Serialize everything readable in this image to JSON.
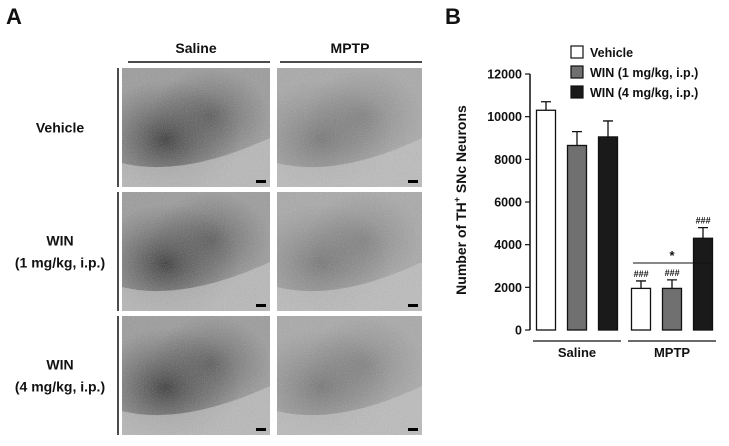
{
  "panel_a": {
    "label": "A",
    "columns": [
      "Saline",
      "MPTP"
    ],
    "rows": [
      [
        "Vehicle"
      ],
      [
        "WIN",
        "(1 mg/kg, i.p.)"
      ],
      [
        "WIN",
        "(4 mg/kg, i.p.)"
      ]
    ]
  },
  "chart_data": {
    "type": "bar",
    "panel_label": "B",
    "ylabel": [
      "Number of TH",
      "+",
      " SNc Neurons"
    ],
    "categories": [
      "Saline",
      "MPTP"
    ],
    "series": [
      {
        "name": "Vehicle",
        "color": "#ffffff",
        "values": [
          10300,
          1950
        ],
        "errors": [
          400,
          350
        ],
        "annotations": [
          null,
          "###"
        ]
      },
      {
        "name": "WIN (1 mg/kg, i.p.)",
        "color": "#707070",
        "values": [
          8650,
          1950
        ],
        "errors": [
          650,
          400
        ],
        "annotations": [
          null,
          "###"
        ]
      },
      {
        "name": "WIN (4 mg/kg, i.p.)",
        "color": "#1a1a1a",
        "values": [
          9050,
          4300
        ],
        "errors": [
          750,
          500
        ],
        "annotations": [
          null,
          "###"
        ]
      }
    ],
    "significance_label": "*",
    "ylim": [
      0,
      12000
    ],
    "yticks": [
      0,
      2000,
      4000,
      6000,
      8000,
      10000,
      12000
    ],
    "grid": false
  }
}
